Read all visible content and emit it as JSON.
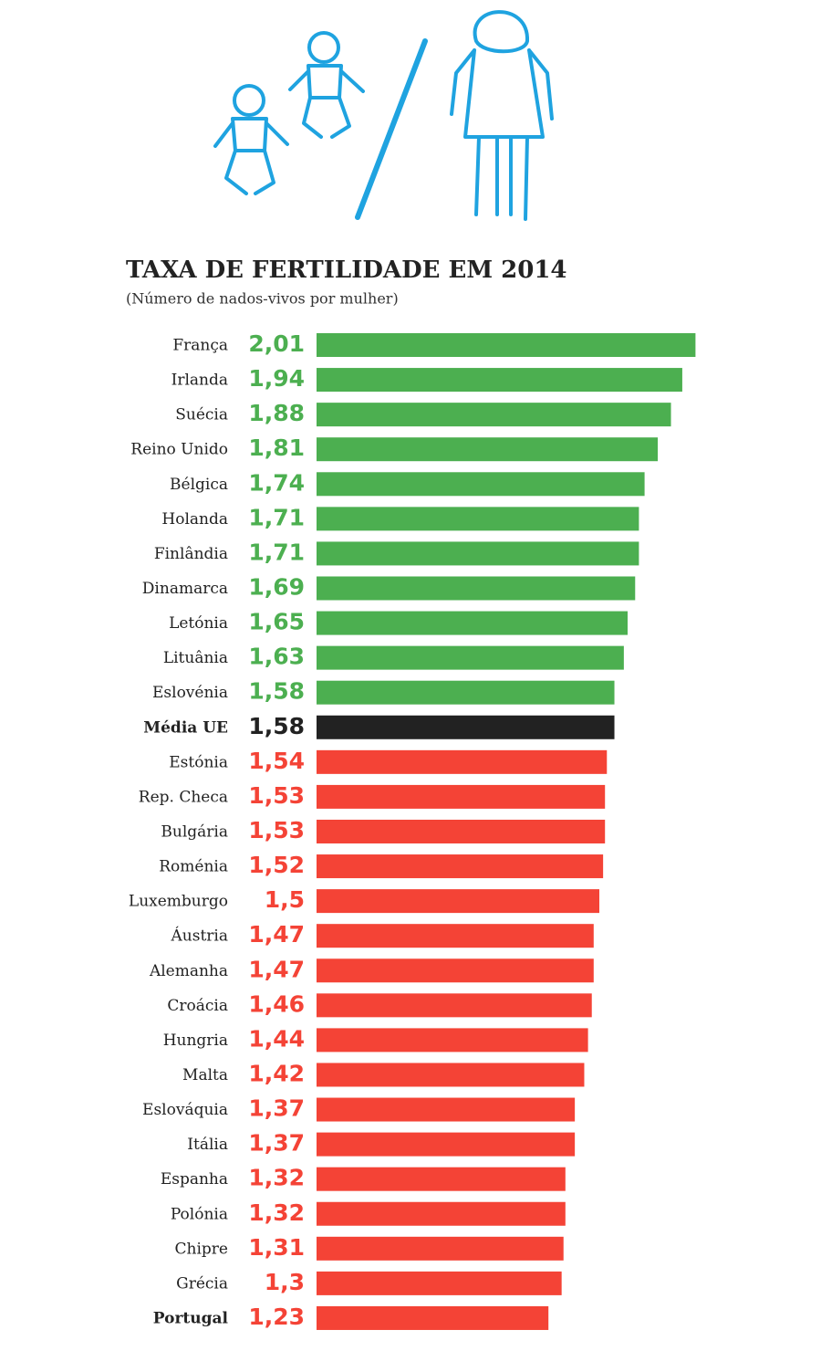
{
  "chart_data": {
    "type": "bar",
    "orientation": "horizontal",
    "title": "TAXA DE FERTILIDADE EM 2014",
    "subtitle": "(Número de nados-vivos por mulher)",
    "categories": [
      "França",
      "Irlanda",
      "Suécia",
      "Reino Unido",
      "Bélgica",
      "Holanda",
      "Finlândia",
      "Dinamarca",
      "Letónia",
      "Lituânia",
      "Eslovénia",
      "Média UE",
      "Estónia",
      "Rep. Checa",
      "Bulgária",
      "Roménia",
      "Luxemburgo",
      "Áustria",
      "Alemanha",
      "Croácia",
      "Hungria",
      "Malta",
      "Eslováquia",
      "Itália",
      "Espanha",
      "Polónia",
      "Chipre",
      "Grécia",
      "Portugal"
    ],
    "values": [
      2.01,
      1.94,
      1.88,
      1.81,
      1.74,
      1.71,
      1.71,
      1.69,
      1.65,
      1.63,
      1.58,
      1.58,
      1.54,
      1.53,
      1.53,
      1.52,
      1.5,
      1.47,
      1.47,
      1.46,
      1.44,
      1.42,
      1.37,
      1.37,
      1.32,
      1.32,
      1.31,
      1.3,
      1.23
    ],
    "value_labels": [
      "2,01",
      "1,94",
      "1,88",
      "1,81",
      "1,74",
      "1,71",
      "1,71",
      "1,69",
      "1,65",
      "1,63",
      "1,58",
      "1,58",
      "1,54",
      "1,53",
      "1,53",
      "1,52",
      "1,5",
      "1,47",
      "1,47",
      "1,46",
      "1,44",
      "1,42",
      "1,37",
      "1,37",
      "1,32",
      "1,32",
      "1,31",
      "1,3",
      "1,23"
    ],
    "colors": [
      "#4caf50",
      "#4caf50",
      "#4caf50",
      "#4caf50",
      "#4caf50",
      "#4caf50",
      "#4caf50",
      "#4caf50",
      "#4caf50",
      "#4caf50",
      "#4caf50",
      "#222222",
      "#f44336",
      "#f44336",
      "#f44336",
      "#f44336",
      "#f44336",
      "#f44336",
      "#f44336",
      "#f44336",
      "#f44336",
      "#f44336",
      "#f44336",
      "#f44336",
      "#f44336",
      "#f44336",
      "#f44336",
      "#f44336",
      "#f44336"
    ],
    "highlight": [
      11,
      28
    ],
    "xlim": [
      0,
      2.1
    ]
  }
}
